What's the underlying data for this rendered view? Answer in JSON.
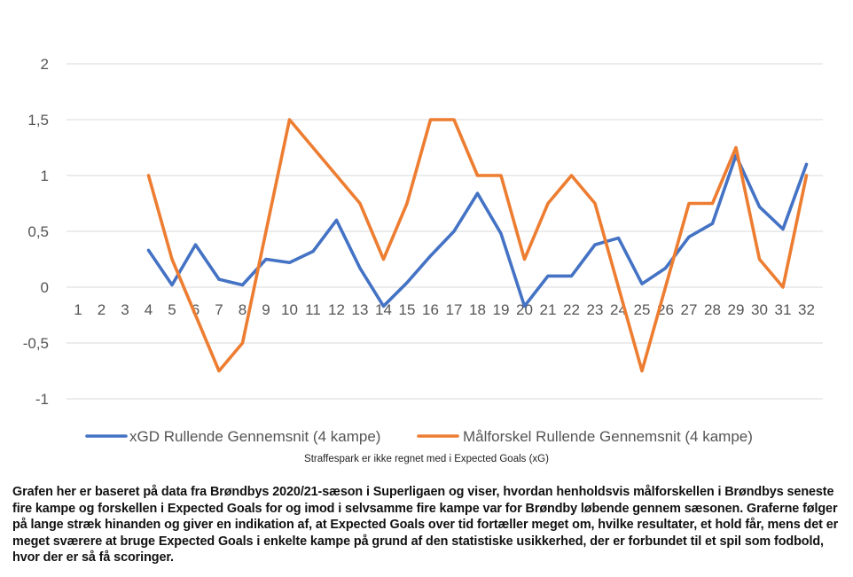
{
  "chart_data": {
    "type": "line",
    "categories": [
      "1",
      "2",
      "3",
      "4",
      "5",
      "6",
      "7",
      "8",
      "9",
      "10",
      "11",
      "12",
      "13",
      "14",
      "15",
      "16",
      "17",
      "18",
      "19",
      "20",
      "21",
      "22",
      "23",
      "24",
      "25",
      "26",
      "27",
      "28",
      "29",
      "30",
      "31",
      "32"
    ],
    "ylim": [
      -1,
      2
    ],
    "yticks": [
      2,
      1.5,
      1,
      0.5,
      0,
      -0.5,
      -1
    ],
    "ytick_labels": [
      "2",
      "1,5",
      "1",
      "0,5",
      "0",
      "-0,5",
      "-1"
    ],
    "grid": true,
    "legend_position": "bottom",
    "series": [
      {
        "name": "xGD Rullende Gennemsnit (4 kampe)",
        "color": "#4472c4",
        "values": [
          null,
          null,
          null,
          0.33,
          0.02,
          0.38,
          0.07,
          0.02,
          0.25,
          0.22,
          0.32,
          0.6,
          0.17,
          -0.17,
          0.04,
          0.28,
          0.5,
          0.84,
          0.48,
          -0.17,
          0.1,
          0.1,
          0.38,
          0.44,
          0.03,
          0.17,
          0.45,
          0.57,
          1.18,
          0.72,
          0.52,
          1.1
        ]
      },
      {
        "name": "Målforskel Rullende Gennemsnit (4 kampe)",
        "color": "#ed7d31",
        "values": [
          null,
          null,
          null,
          1.0,
          0.25,
          -0.25,
          -0.75,
          -0.5,
          0.5,
          1.5,
          1.25,
          1.0,
          0.75,
          0.25,
          0.75,
          1.5,
          1.5,
          1.0,
          1.0,
          0.25,
          0.75,
          1.0,
          0.75,
          0.0,
          -0.75,
          0.0,
          0.75,
          0.75,
          1.25,
          0.25,
          0.0,
          1.0
        ]
      }
    ]
  },
  "note": "Straffespark er ikke regnet med i Expected Goals (xG)",
  "caption": "Grafen her er baseret på data fra Brøndbys 2020/21-sæson i Superligaen og viser, hvordan henholdsvis målforskellen i Brøndbys seneste fire kampe og forskellen i Expected Goals for og imod i selvsamme fire kampe var for Brøndby løbende gennem sæsonen. Graferne følger på lange stræk hinanden og giver en indikation af, at Expected Goals over tid fortæller meget om, hvilke resultater, et hold får, mens det er meget sværere at bruge Expected Goals i enkelte kampe på grund af den statistiske usikkerhed, der er forbundet til et spil som fodbold, hvor der er så få scoringer."
}
